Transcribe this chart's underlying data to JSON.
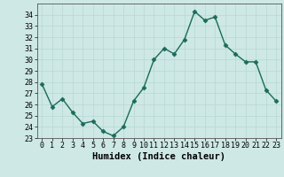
{
  "x": [
    0,
    1,
    2,
    3,
    4,
    5,
    6,
    7,
    8,
    9,
    10,
    11,
    12,
    13,
    14,
    15,
    16,
    17,
    18,
    19,
    20,
    21,
    22,
    23
  ],
  "y": [
    27.8,
    25.8,
    26.5,
    25.3,
    24.3,
    24.5,
    23.6,
    23.2,
    24.0,
    26.3,
    27.5,
    30.0,
    31.0,
    30.5,
    31.8,
    34.3,
    33.5,
    33.8,
    31.3,
    30.5,
    29.8,
    29.8,
    27.3,
    26.3
  ],
  "xlabel": "Humidex (Indice chaleur)",
  "ylim": [
    23,
    35
  ],
  "yticks": [
    23,
    24,
    25,
    26,
    27,
    28,
    29,
    30,
    31,
    32,
    33,
    34
  ],
  "xticks": [
    0,
    1,
    2,
    3,
    4,
    5,
    6,
    7,
    8,
    9,
    10,
    11,
    12,
    13,
    14,
    15,
    16,
    17,
    18,
    19,
    20,
    21,
    22,
    23
  ],
  "line_color": "#1a6b5a",
  "marker_color": "#1a6b5a",
  "bg_color": "#cde8e5",
  "grid_color": "#b8d8d4",
  "axes_bg": "#cde8e5",
  "tick_fontsize": 6.0,
  "xlabel_fontsize": 7.5,
  "linewidth": 1.0,
  "markersize": 2.5
}
